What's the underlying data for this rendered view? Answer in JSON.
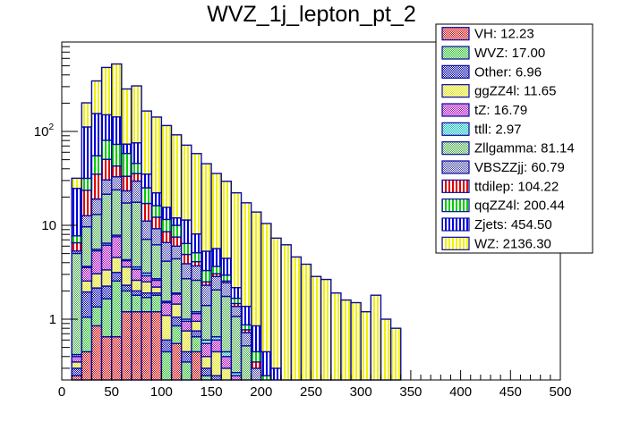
{
  "chart_data": {
    "type": "bar",
    "stacked": true,
    "title": "WVZ_1j_lepton_pt_2",
    "xlabel": "",
    "ylabel": "",
    "xlim": [
      0,
      500
    ],
    "ylim": [
      0.22,
      1000
    ],
    "yscale": "log",
    "x_ticks": [
      "0",
      "50",
      "100",
      "150",
      "200",
      "250",
      "300",
      "350",
      "400",
      "450",
      "500"
    ],
    "y_ticks": [
      {
        "value": 1,
        "label": "1"
      },
      {
        "value": 10,
        "label": "10"
      },
      {
        "value": 100,
        "label": "10^2"
      }
    ],
    "bin_width": 10,
    "bin_edges_start": 10,
    "legend_position": "top-right",
    "series": [
      {
        "name": "VH",
        "total": "12.23",
        "fill": "#e06060",
        "pattern": "checker",
        "pcolor": "#cc0000",
        "values": [
          0.25,
          0.45,
          0.85,
          0.65,
          0.65,
          1.2,
          1.2,
          1.2,
          1.2,
          0,
          0.55,
          0,
          0.45,
          0,
          0,
          0,
          0,
          0,
          0,
          0,
          0,
          0,
          0,
          0,
          0,
          0,
          0,
          0,
          0,
          0,
          0,
          0,
          0,
          0
        ]
      },
      {
        "name": "WVZ",
        "total": "17.00",
        "fill": "#60e060",
        "pattern": "checker",
        "pcolor": "#22bb22",
        "values": [
          0,
          0.6,
          0.5,
          1.0,
          1.9,
          0.8,
          0.6,
          0.5,
          0.6,
          0.45,
          0.3,
          0.35,
          0.2,
          0.25,
          0.2,
          0.15,
          0.1,
          0.1,
          0,
          0,
          0,
          0,
          0,
          0,
          0,
          0,
          0,
          0,
          0,
          0,
          0,
          0,
          0,
          0
        ]
      },
      {
        "name": "Other",
        "total": "6.96",
        "fill": "#5050e0",
        "pattern": "checker",
        "pcolor": "#0000aa",
        "values": [
          0.05,
          0.9,
          0.8,
          0.6,
          0.6,
          0.3,
          0.2,
          0.2,
          0.1,
          0.15,
          0.2,
          0.1,
          0.1,
          0.05,
          0.05,
          0.05,
          0,
          0,
          0,
          0,
          0,
          0,
          0,
          0,
          0,
          0,
          0,
          0,
          0,
          0,
          0,
          0,
          0,
          0
        ]
      },
      {
        "name": "ggZZ4l",
        "total": "11.65",
        "fill": "#f0f060",
        "pattern": "checker",
        "pcolor": "#e0e000",
        "values": [
          0.05,
          0.6,
          0.9,
          1.1,
          1.4,
          1.3,
          0.6,
          0.6,
          0.3,
          0.5,
          0.4,
          0.3,
          0.2,
          0.1,
          0.2,
          0.1,
          0.1,
          0.05,
          0,
          0,
          0,
          0,
          0,
          0,
          0,
          0,
          0,
          0,
          0,
          0,
          0,
          0,
          0,
          0
        ]
      },
      {
        "name": "tZ",
        "total": "16.79",
        "fill": "#d060e0",
        "pattern": "checker",
        "pcolor": "#aa00bb",
        "values": [
          0.05,
          1.0,
          2.3,
          2.8,
          3.0,
          0.6,
          0.8,
          0.4,
          0.4,
          0.4,
          0.4,
          0.2,
          0.2,
          0.15,
          0.15,
          0.1,
          0.05,
          0.05,
          0,
          0,
          0,
          0,
          0,
          0,
          0,
          0,
          0,
          0,
          0,
          0,
          0,
          0,
          0,
          0
        ]
      },
      {
        "name": "ttll",
        "total": "2.97",
        "fill": "#60e0e0",
        "pattern": "checker",
        "pcolor": "#00bbbb",
        "values": [
          0.02,
          0.1,
          0.2,
          0.3,
          0.3,
          0.1,
          0.2,
          0.2,
          0.1,
          0.05,
          0.05,
          0.05,
          0.05,
          0.05,
          0.05,
          0.05,
          0.02,
          0.02,
          0,
          0,
          0,
          0,
          0,
          0,
          0,
          0,
          0,
          0,
          0,
          0,
          0,
          0,
          0,
          0
        ]
      },
      {
        "name": "Zllgamma",
        "total": "81.14",
        "fill": "#90d890",
        "pattern": "checker",
        "pcolor": "#44aa44",
        "values": [
          4.6,
          6.0,
          7.5,
          15.0,
          16.0,
          13.0,
          14.0,
          4.0,
          3.5,
          2.6,
          2.5,
          1.7,
          1.4,
          0.8,
          1.4,
          1.3,
          0.8,
          0.3,
          0.2,
          0.1,
          0,
          0,
          0,
          0,
          0,
          0,
          0,
          0,
          0,
          0,
          0,
          0,
          0,
          0
        ]
      },
      {
        "name": "VBSZZjj",
        "total": "60.79",
        "fill": "#9090d8",
        "pattern": "checker",
        "pcolor": "#4444aa",
        "values": [
          0.3,
          3.0,
          6.0,
          9.0,
          9.0,
          6.0,
          12.0,
          4.0,
          3.0,
          2.4,
          1.6,
          1.2,
          1.1,
          0.9,
          0.8,
          0.7,
          0.3,
          0.2,
          0.1,
          0.1,
          0,
          0,
          0,
          0,
          0,
          0,
          0,
          0,
          0,
          0,
          0,
          0,
          0,
          0
        ]
      },
      {
        "name": "ttdilep",
        "total": "104.22",
        "fill": "#ffffff",
        "pattern": "vlines",
        "pcolor": "#dd0000",
        "values": [
          1.2,
          11.0,
          16.0,
          20.0,
          10.0,
          10.0,
          6.0,
          6.0,
          3.0,
          2.0,
          1.5,
          1.0,
          0.4,
          0.2,
          0.2,
          0.1,
          0.1,
          0.05,
          0.05,
          0,
          0,
          0,
          0,
          0,
          0,
          0,
          0,
          0,
          0,
          0,
          0,
          0,
          0,
          0
        ]
      },
      {
        "name": "qqZZ4l",
        "total": "200.44",
        "fill": "#ffffff",
        "pattern": "vlines",
        "pcolor": "#00cc00",
        "values": [
          1.2,
          8.0,
          20.0,
          30.0,
          30.0,
          25.0,
          10.0,
          8.0,
          4.0,
          3.0,
          2.5,
          1.5,
          1.0,
          0.8,
          0.6,
          0.4,
          0.2,
          0.1,
          0.1,
          0.05,
          0,
          0,
          0,
          0,
          0,
          0,
          0,
          0,
          0,
          0,
          0,
          0,
          0,
          0
        ]
      },
      {
        "name": "Zjets",
        "total": "454.50",
        "fill": "#ffffff",
        "pattern": "vlines",
        "pcolor": "#0000dd",
        "values": [
          17.0,
          80.0,
          100.0,
          70.0,
          70.0,
          15.0,
          30.0,
          10.0,
          6.0,
          4.0,
          2.0,
          5.0,
          3.0,
          2.0,
          2.0,
          1.5,
          0.5,
          0.5,
          0.4,
          0.2,
          0.3,
          0.2,
          0.1,
          0.05,
          0.05,
          0.05,
          0,
          0,
          0,
          0,
          0,
          0,
          0,
          0
        ]
      },
      {
        "name": "WZ",
        "total": "2136.30",
        "fill": "#ffffff",
        "pattern": "vlines",
        "pcolor": "#f0f000",
        "values": [
          7.0,
          90.0,
          190.0,
          330.0,
          380.0,
          210.0,
          230.0,
          130.0,
          120.0,
          100.0,
          80.0,
          60.0,
          50.0,
          40.0,
          30.0,
          25.0,
          20.0,
          16.0,
          13.0,
          10.0,
          7.0,
          6.0,
          4.5,
          3.8,
          2.8,
          2.6,
          1.9,
          1.6,
          1.5,
          1.2,
          1.8,
          1.0,
          0.8,
          0
        ]
      }
    ]
  }
}
